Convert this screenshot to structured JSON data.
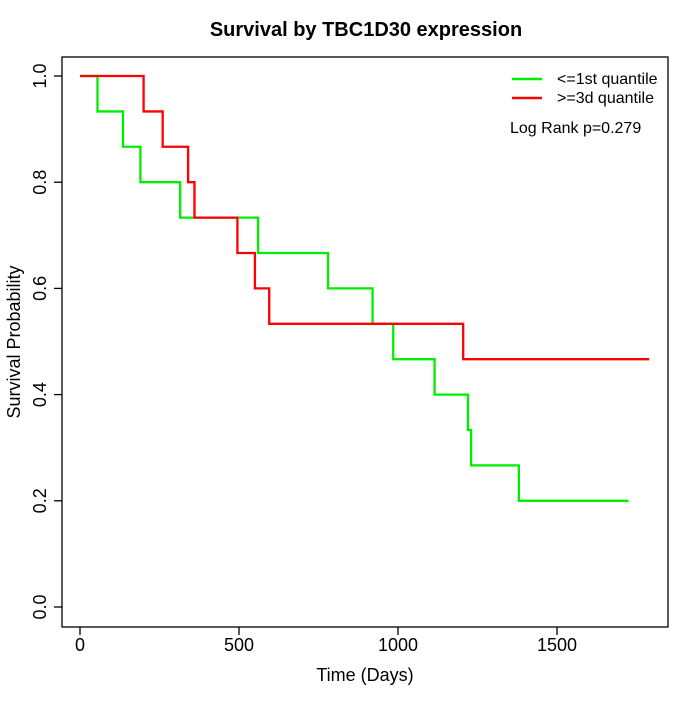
{
  "chart_data": {
    "type": "line",
    "subtype": "kaplan_meier_step_curves",
    "title": "Survival by TBC1D30 expression",
    "xlabel": "Time (Days)",
    "ylabel": "Survival Probability",
    "xlim": [
      0,
      1800
    ],
    "ylim": [
      0.0,
      1.0
    ],
    "grid": false,
    "legend_position": "top-right-inside",
    "annotation": "Log Rank p=0.279",
    "x_ticks": [
      "0",
      "500",
      "1000",
      "1500"
    ],
    "x_tick_values": [
      0,
      500,
      1000,
      1500
    ],
    "y_ticks": [
      "0.0",
      "0.2",
      "0.4",
      "0.6",
      "0.8",
      "1.0"
    ],
    "y_tick_values": [
      0.0,
      0.2,
      0.4,
      0.6,
      0.8,
      1.0
    ],
    "series": [
      {
        "name": "<=1st quantile",
        "color": "#00EE00",
        "steps": [
          [
            0,
            1.0
          ],
          [
            55,
            0.9333
          ],
          [
            135,
            0.8667
          ],
          [
            190,
            0.8
          ],
          [
            315,
            0.7333
          ],
          [
            560,
            0.6667
          ],
          [
            780,
            0.6
          ],
          [
            920,
            0.5333
          ],
          [
            985,
            0.4667
          ],
          [
            1115,
            0.4
          ],
          [
            1220,
            0.3333
          ],
          [
            1230,
            0.2667
          ],
          [
            1380,
            0.2
          ]
        ],
        "end_time": 1725,
        "final_survival": 0.2
      },
      {
        "name": ">=3d quantile",
        "color": "#FF0000",
        "steps": [
          [
            0,
            1.0
          ],
          [
            200,
            0.9333
          ],
          [
            260,
            0.8667
          ],
          [
            340,
            0.8
          ],
          [
            360,
            0.7333
          ],
          [
            495,
            0.6667
          ],
          [
            550,
            0.6
          ],
          [
            595,
            0.5333
          ],
          [
            1205,
            0.4667
          ]
        ],
        "end_time": 1790,
        "final_survival": 0.4667
      }
    ]
  }
}
